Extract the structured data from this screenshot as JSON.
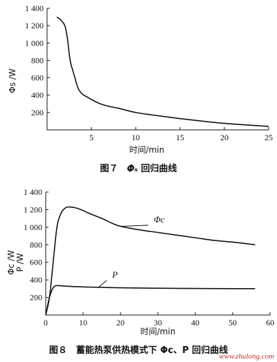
{
  "chart_data": [
    {
      "type": "line",
      "caption": "图７　𝜱ₛ 回归曲线",
      "xlabel": "时间/min",
      "ylabel": "Φs /W",
      "xlim": [
        0,
        25
      ],
      "ylim": [
        0,
        1400
      ],
      "x_ticks": [
        "5",
        "10",
        "15",
        "20",
        "25"
      ],
      "x_tick_values": [
        5,
        10,
        15,
        20,
        25
      ],
      "y_ticks": [
        "200",
        "400",
        "600",
        "800",
        "1 000",
        "1 200",
        "1 400"
      ],
      "y_tick_values": [
        200,
        400,
        600,
        800,
        1000,
        1200,
        1400
      ],
      "series": [
        {
          "x": [
            1.1,
            1.5,
            2.0,
            2.3,
            2.6,
            3.0,
            3.5,
            4.0,
            4.5,
            5.0,
            6.0,
            7.0,
            8.0,
            10.0,
            12.0,
            15.0,
            18.0,
            20.0,
            22.0,
            25.0
          ],
          "y": [
            1300,
            1270,
            1200,
            1050,
            800,
            650,
            480,
            410,
            380,
            350,
            300,
            270,
            250,
            200,
            170,
            130,
            95,
            75,
            60,
            40
          ]
        }
      ]
    },
    {
      "type": "line",
      "caption": "图８　蓄能热泵供热模式下 Φc、P 回归曲线",
      "xlabel": "时间/min",
      "ylabel": "Φc /W\nP /W",
      "xlim": [
        0,
        60
      ],
      "ylim": [
        0,
        1400
      ],
      "x_ticks": [
        "0",
        "10",
        "20",
        "30",
        "40",
        "50",
        "60"
      ],
      "x_tick_values": [
        0,
        10,
        20,
        30,
        40,
        50,
        60
      ],
      "y_ticks": [
        "200",
        "400",
        "600",
        "800",
        "1 000",
        "1 200",
        "1 400"
      ],
      "y_tick_values": [
        200,
        400,
        600,
        800,
        1000,
        1200,
        1400
      ],
      "series": [
        {
          "name": "Φc",
          "x": [
            0,
            1.0,
            2.0,
            3.0,
            4.0,
            5.0,
            6.0,
            8.0,
            10.0,
            12.0,
            15.0,
            18.0,
            20.0,
            25.0,
            30.0,
            35.0,
            40.0,
            45.0,
            50.0,
            56.0
          ],
          "y": [
            0,
            200,
            600,
            1000,
            1150,
            1210,
            1230,
            1220,
            1190,
            1150,
            1100,
            1040,
            1010,
            970,
            940,
            910,
            880,
            850,
            830,
            800
          ]
        },
        {
          "name": "P",
          "x": [
            0,
            1.0,
            2.0,
            3.0,
            5.0,
            10.0,
            20.0,
            30.0,
            40.0,
            50.0,
            56.0
          ],
          "y": [
            0,
            200,
            310,
            335,
            330,
            320,
            310,
            305,
            302,
            300,
            300
          ]
        }
      ]
    }
  ],
  "watermark": "www.zhulong.com"
}
